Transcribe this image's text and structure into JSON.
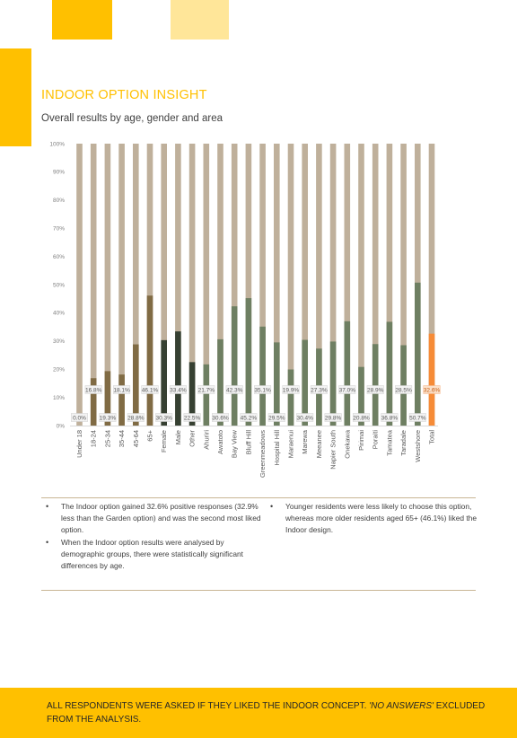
{
  "page": {
    "title": "INDOOR OPTION INSIGHT",
    "subtitle": "Overall results by age, gender and area"
  },
  "colors": {
    "accent": "#ffc000",
    "accent_light": "#ffe699",
    "bar_background": "#bfb09b",
    "age_bars": "#806b44",
    "gender_bars": "#364032",
    "area_bars": "#6e7f62",
    "total_bar": "#f68b37"
  },
  "chart_data": {
    "type": "bar",
    "title": "",
    "xlabel": "",
    "ylabel": "",
    "ylim": [
      0,
      100
    ],
    "yticks": [
      "0%",
      "10%",
      "20%",
      "30%",
      "40%",
      "50%",
      "60%",
      "70%",
      "80%",
      "90%",
      "100%"
    ],
    "categories": [
      "Under 18",
      "18-24",
      "25-34",
      "35-44",
      "45-64",
      "65+",
      "Female",
      "Male",
      "Other",
      "Ahuriri",
      "Awatoto",
      "Bay View",
      "Bluff Hill",
      "Greenmeadows",
      "Hospital Hill",
      "Maraenui",
      "Marewa",
      "Meeanee",
      "Napier South",
      "Onekawa",
      "Pirimai",
      "Poraiti",
      "Tamatea",
      "Taradale",
      "Westshore",
      "Total"
    ],
    "groups": [
      "age",
      "age",
      "age",
      "age",
      "age",
      "age",
      "gender",
      "gender",
      "gender",
      "area",
      "area",
      "area",
      "area",
      "area",
      "area",
      "area",
      "area",
      "area",
      "area",
      "area",
      "area",
      "area",
      "area",
      "area",
      "area",
      "total"
    ],
    "values": [
      0.0,
      16.8,
      19.3,
      18.1,
      28.8,
      46.1,
      30.3,
      33.4,
      22.5,
      21.7,
      30.6,
      42.3,
      45.2,
      35.1,
      29.5,
      19.9,
      30.4,
      27.3,
      29.8,
      37.0,
      20.8,
      28.9,
      36.8,
      28.5,
      50.7,
      32.6
    ],
    "labels": [
      "0.0%",
      "16.8%",
      "19.3%",
      "18.1%",
      "28.8%",
      "46.1%",
      "30.3%",
      "33.4%",
      "22.5%",
      "21.7%",
      "30.6%",
      "42.3%",
      "45.2%",
      "35.1%",
      "29.5%",
      "19.9%",
      "30.4%",
      "27.3%",
      "29.8%",
      "37.0%",
      "20.8%",
      "28.9%",
      "36.8%",
      "28.5%",
      "50.7%",
      "32.6%"
    ],
    "grid": false,
    "legend": "none",
    "background_bars": true
  },
  "notes": {
    "left": [
      "The Indoor option gained 32.6% positive responses (32.9% less than the Garden option) and was the second most liked option.",
      "When the Indoor option results were analysed by demographic groups, there were statistically significant differences by age."
    ],
    "right": [
      "Younger residents were less likely to choose this option, whereas more older residents aged 65+ (46.1%) liked the Indoor design."
    ]
  },
  "footer": {
    "text": "ALL RESPONDENTS WERE ASKED IF THEY LIKED THE INDOOR CONCEPT. ",
    "emphasis": "'NO ANSWERS'",
    "tail": " EXCLUDED FROM THE ANALYSIS."
  }
}
